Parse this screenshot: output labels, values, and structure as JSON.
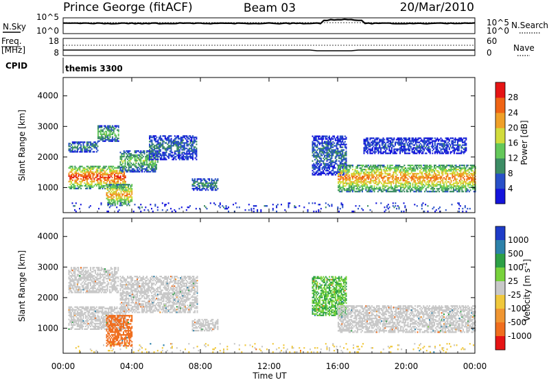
{
  "header": {
    "station": "Prince George (fitACF)",
    "beam": "Beam 03",
    "date": "20/Mar/2010"
  },
  "strip_labels": {
    "nsky": "N.Sky",
    "nsearch": "N.Search",
    "freq_line1": "Freq.",
    "freq_line2": "[MHz]",
    "nave": "Nave",
    "cpid": "CPID",
    "cpid_value": "themis 3300"
  },
  "strip_ticks": {
    "noise_left": [
      "10^5",
      "10^0"
    ],
    "noise_right": [
      "10^5",
      "10^0"
    ],
    "freq_left": [
      "18",
      "8"
    ],
    "freq_right": [
      "60",
      "0"
    ]
  },
  "colors": {
    "power_scale": [
      "#1414dc",
      "#2850c8",
      "#3c8c64",
      "#64c85a",
      "#d2dc3c",
      "#f0a028",
      "#f06414",
      "#e61414"
    ],
    "velocity_scale": [
      "#1e3cc8",
      "#2d82aa",
      "#2da046",
      "#78d23c",
      "#c8c8c8",
      "#f0c83c",
      "#f09632",
      "#f06e1e",
      "#e61414"
    ]
  },
  "chart_data": [
    {
      "type": "heatmap",
      "title": "",
      "xlabel": "Time UT",
      "ylabel": "Slant Range [km]",
      "x_ticks": [
        "00:00",
        "04:00",
        "08:00",
        "12:00",
        "16:00",
        "20:00",
        "00:00"
      ],
      "y_ticks": [
        "1000",
        "2000",
        "3000",
        "4000"
      ],
      "xlim_hours": [
        0,
        24
      ],
      "ylim_km": [
        180,
        4600
      ],
      "colorbar": {
        "label": "Power [dB]",
        "ticks": [
          "4",
          "8",
          "12",
          "16",
          "20",
          "24",
          "28"
        ],
        "range": [
          0,
          30
        ]
      },
      "regions": [
        {
          "t0": 0.3,
          "t1": 3.6,
          "r0": 950,
          "r1": 1700,
          "peak": 27
        },
        {
          "t0": 3.3,
          "t1": 5.5,
          "r0": 1500,
          "r1": 2200,
          "peak": 14
        },
        {
          "t0": 5.0,
          "t1": 7.8,
          "r0": 1900,
          "r1": 2700,
          "peak": 8
        },
        {
          "t0": 0.3,
          "t1": 2.0,
          "r0": 2150,
          "r1": 2500,
          "peak": 10
        },
        {
          "t0": 2.0,
          "t1": 3.2,
          "r0": 2500,
          "r1": 3000,
          "peak": 14
        },
        {
          "t0": 2.5,
          "t1": 4.0,
          "r0": 400,
          "r1": 1100,
          "peak": 22
        },
        {
          "t0": 7.5,
          "t1": 9.0,
          "r0": 900,
          "r1": 1300,
          "peak": 10
        },
        {
          "t0": 14.5,
          "t1": 16.5,
          "r0": 1400,
          "r1": 2700,
          "peak": 8
        },
        {
          "t0": 16.0,
          "t1": 24.0,
          "r0": 850,
          "r1": 1750,
          "peak": 23
        },
        {
          "t0": 17.5,
          "t1": 23.5,
          "r0": 2100,
          "r1": 2600,
          "peak": 6
        },
        {
          "t0": 0.5,
          "t1": 24.0,
          "r0": 200,
          "r1": 500,
          "peak": 6
        }
      ]
    },
    {
      "type": "heatmap",
      "title": "",
      "xlabel": "Time UT",
      "ylabel": "Slant Range [km]",
      "x_ticks": [
        "00:00",
        "04:00",
        "08:00",
        "12:00",
        "16:00",
        "20:00",
        "00:00"
      ],
      "y_ticks": [
        "1000",
        "2000",
        "3000",
        "4000"
      ],
      "xlim_hours": [
        0,
        24
      ],
      "ylim_km": [
        180,
        4600
      ],
      "colorbar": {
        "label": "Velocity [m s^-1]",
        "ticks": [
          "1000",
          "500",
          "100",
          "25",
          "-25",
          "-100",
          "-500",
          "-1000"
        ]
      },
      "regions": [
        {
          "t0": 0.3,
          "t1": 3.6,
          "r0": 950,
          "r1": 1700,
          "vel": 0
        },
        {
          "t0": 3.3,
          "t1": 7.8,
          "r0": 1500,
          "r1": 2700,
          "vel": 0
        },
        {
          "t0": 2.5,
          "t1": 4.0,
          "r0": 400,
          "r1": 1400,
          "vel": -350
        },
        {
          "t0": 0.3,
          "t1": 3.2,
          "r0": 2150,
          "r1": 3000,
          "vel": 0
        },
        {
          "t0": 7.5,
          "t1": 9.0,
          "r0": 900,
          "r1": 1300,
          "vel": 0
        },
        {
          "t0": 14.5,
          "t1": 16.5,
          "r0": 1400,
          "r1": 2700,
          "vel": 60
        },
        {
          "t0": 16.0,
          "t1": 24.0,
          "r0": 850,
          "r1": 1750,
          "vel": 0
        },
        {
          "t0": 0.5,
          "t1": 24.0,
          "r0": 200,
          "r1": 500,
          "vel": -30
        }
      ]
    }
  ]
}
